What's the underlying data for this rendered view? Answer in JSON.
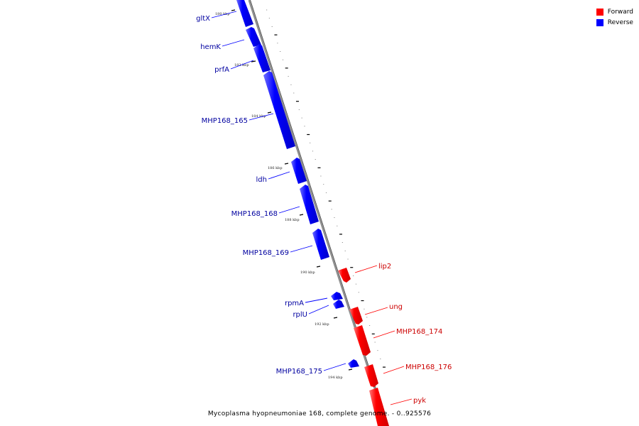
{
  "legend": {
    "forward": {
      "label": "Forward",
      "color": "#ff0000"
    },
    "reverse": {
      "label": "Reverse",
      "color": "#0000ff"
    }
  },
  "caption": "Mycoplasma hyopneumoniae 168, complete genome. - 0..925576",
  "ticks": [
    "180 kbp",
    "182 kbp",
    "184 kbp",
    "186 kbp",
    "188 kbp",
    "190 kbp",
    "192 kbp",
    "194 kbp"
  ],
  "genes": [
    {
      "name": "gltX",
      "strand": "reverse"
    },
    {
      "name": "hemK",
      "strand": "reverse"
    },
    {
      "name": "prfA",
      "strand": "reverse"
    },
    {
      "name": "MHP168_165",
      "strand": "reverse"
    },
    {
      "name": "ldh",
      "strand": "reverse"
    },
    {
      "name": "MHP168_168",
      "strand": "reverse"
    },
    {
      "name": "MHP168_169",
      "strand": "reverse"
    },
    {
      "name": "lip2",
      "strand": "forward"
    },
    {
      "name": "rpmA",
      "strand": "reverse"
    },
    {
      "name": "rplU",
      "strand": "reverse"
    },
    {
      "name": "ung",
      "strand": "forward"
    },
    {
      "name": "MHP168_174",
      "strand": "forward"
    },
    {
      "name": "MHP168_175",
      "strand": "reverse"
    },
    {
      "name": "MHP168_176",
      "strand": "forward"
    },
    {
      "name": "pyk",
      "strand": "forward"
    }
  ]
}
